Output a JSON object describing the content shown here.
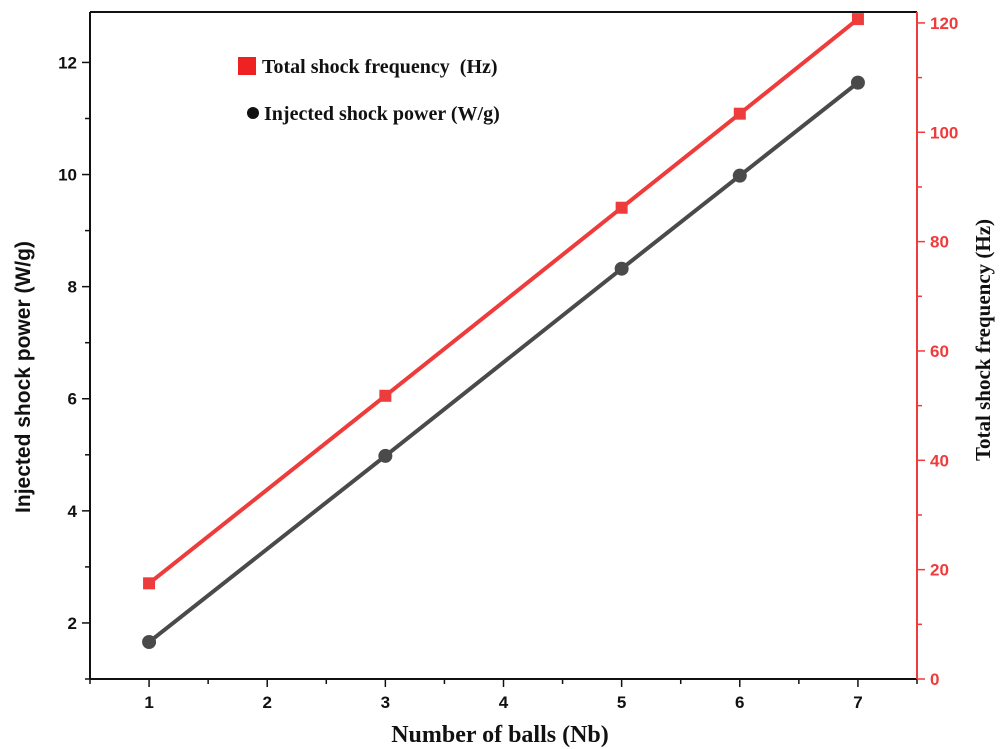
{
  "chart_data": {
    "type": "line",
    "x_axis": {
      "label": "Number of balls (Nb)",
      "range": [
        0.5,
        7.5
      ],
      "ticks": [
        1,
        2,
        3,
        4,
        5,
        6,
        7
      ]
    },
    "y_axis_left": {
      "label": "Injected shock power (W/g)",
      "range": [
        1.0,
        12.9
      ],
      "ticks": [
        2,
        4,
        6,
        8,
        10,
        12
      ]
    },
    "y_axis_right": {
      "label": "Total shock frequency (Hz)",
      "range": [
        0,
        122
      ],
      "ticks": [
        0,
        20,
        40,
        60,
        80,
        100,
        120
      ],
      "color": "#ee3b3b"
    },
    "series": [
      {
        "name": "Total shock frequency  (Hz)",
        "axis": "right",
        "marker": "square",
        "color": "#ee3b3b",
        "points": [
          [
            1,
            17.5
          ],
          [
            3,
            51.8
          ],
          [
            5,
            86.2
          ],
          [
            6,
            103.4
          ],
          [
            7,
            120.7
          ]
        ]
      },
      {
        "name": "Injected shock power (W/g)",
        "axis": "left",
        "marker": "circle",
        "color": "#4a4a4a",
        "points": [
          [
            1,
            1.66
          ],
          [
            3,
            4.98
          ],
          [
            5,
            8.32
          ],
          [
            6,
            9.98
          ],
          [
            7,
            11.64
          ]
        ]
      }
    ],
    "legend": {
      "position": "top-left"
    },
    "grid": false
  }
}
